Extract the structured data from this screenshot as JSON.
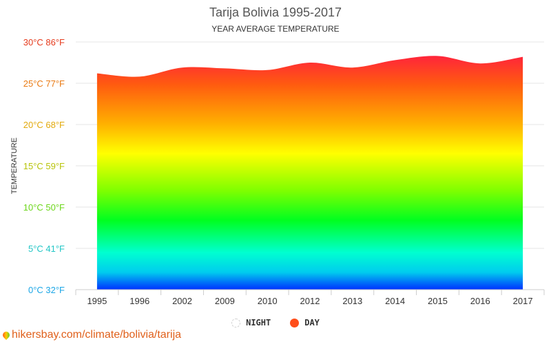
{
  "chart_data": {
    "type": "area",
    "title": "Tarija Bolivia 1995-2017",
    "subtitle": "YEAR AVERAGE TEMPERATURE",
    "ylabel": "TEMPERATURE",
    "categories": [
      "1995",
      "1996",
      "2002",
      "2009",
      "2010",
      "2012",
      "2013",
      "2014",
      "2015",
      "2016",
      "2017"
    ],
    "series": [
      {
        "name": "DAY",
        "values": [
          26.2,
          25.8,
          26.9,
          26.8,
          26.6,
          27.5,
          26.9,
          27.8,
          28.3,
          27.4,
          28.2
        ]
      }
    ],
    "ylim": [
      0,
      30
    ],
    "yticks": [
      {
        "value": 0,
        "label": "0°C 32°F",
        "color": "#1ba6e6"
      },
      {
        "value": 5,
        "label": "5°C 41°F",
        "color": "#22c6c6"
      },
      {
        "value": 10,
        "label": "10°C 50°F",
        "color": "#6cd61a"
      },
      {
        "value": 15,
        "label": "15°C 59°F",
        "color": "#b8c40a"
      },
      {
        "value": 20,
        "label": "20°C 68°F",
        "color": "#e2a90a"
      },
      {
        "value": 25,
        "label": "25°C 77°F",
        "color": "#ea7a12"
      },
      {
        "value": 30,
        "label": "30°C 86°F",
        "color": "#e53a1c"
      }
    ],
    "grid": true
  },
  "legend": {
    "night_label": "NIGHT",
    "day_label": "DAY",
    "day_color": "#ff4e1a"
  },
  "source": "hikersbay.com/climate/bolivia/tarija"
}
